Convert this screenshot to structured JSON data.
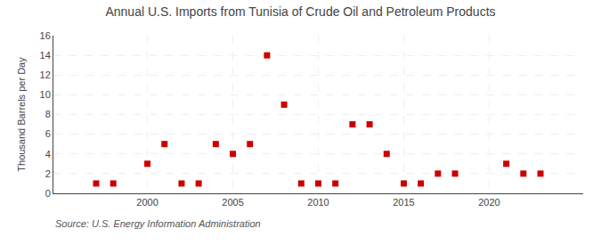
{
  "chart_data": {
    "type": "scatter",
    "title": "Annual U.S. Imports from Tunisia of Crude Oil and Petroleum Products",
    "ylabel": "Thousand Barrels per Day",
    "annotations": [
      "Source: U.S. Energy Information Administration"
    ],
    "x": [
      1997,
      1998,
      2000,
      2001,
      2002,
      2003,
      2004,
      2005,
      2006,
      2007,
      2008,
      2009,
      2010,
      2011,
      2012,
      2013,
      2014,
      2015,
      2016,
      2017,
      2018,
      2021,
      2022,
      2023
    ],
    "values": [
      1,
      1,
      3,
      5,
      1,
      1,
      5,
      4,
      5,
      14,
      9,
      1,
      1,
      1,
      7,
      7,
      4,
      1,
      1,
      2,
      2,
      3,
      2,
      2
    ],
    "color": "#cc0000",
    "marker": "square",
    "xlim": [
      1994.5,
      2025.5
    ],
    "ylim": [
      0,
      16
    ],
    "xticks": [
      2000,
      2005,
      2010,
      2015,
      2020
    ],
    "yticks": [
      0,
      2,
      4,
      6,
      8,
      10,
      12,
      14,
      16
    ],
    "grid": true
  }
}
